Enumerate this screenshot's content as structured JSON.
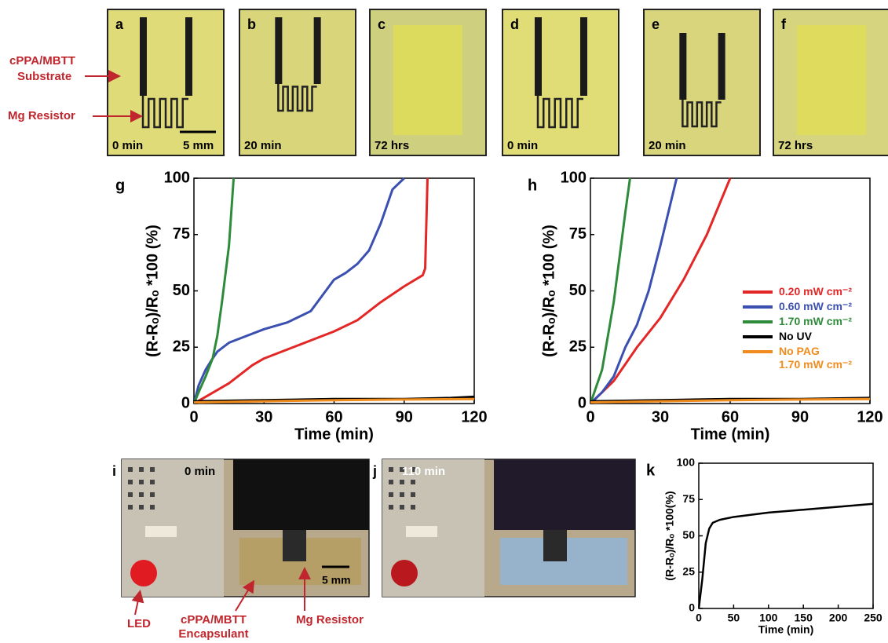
{
  "photos_top": [
    {
      "label": "a",
      "time": "0 min",
      "scale": "5 mm"
    },
    {
      "label": "b",
      "time": "20 min"
    },
    {
      "label": "c",
      "time": "72 hrs"
    },
    {
      "label": "d",
      "time": "0 min"
    },
    {
      "label": "e",
      "time": "20 min"
    },
    {
      "label": "f",
      "time": "72 hrs"
    }
  ],
  "annotations_top": {
    "substrate": [
      "cPPA/MBTT",
      "Substrate"
    ],
    "resistor": "Mg Resistor"
  },
  "photos_bottom": [
    {
      "label": "i",
      "time": "0 min",
      "scale": "5 mm"
    },
    {
      "label": "j",
      "time": "110 min"
    }
  ],
  "annotations_bottom": {
    "led": "LED",
    "encapsulant": [
      "cPPA/MBTT",
      "Encapsulant"
    ],
    "resistor": "Mg Resistor"
  },
  "chart_data": [
    {
      "type": "line",
      "panel": "g",
      "x_label": "Time (min)",
      "y_label": "(R-Rₒ)/Rₒ *100 (%)",
      "xlim": [
        0,
        120
      ],
      "xticks": [
        0,
        30,
        60,
        90,
        120
      ],
      "ylim": [
        0,
        100
      ],
      "yticks": [
        0,
        25,
        50,
        75,
        100
      ],
      "series": [
        {
          "name": "0.20 mW cm⁻²",
          "color": "#e32626",
          "x": [
            0,
            5,
            10,
            15,
            20,
            25,
            30,
            40,
            50,
            60,
            70,
            80,
            90,
            98,
            99,
            100
          ],
          "values": [
            0,
            3,
            6,
            9,
            13,
            17,
            20,
            24,
            28,
            32,
            37,
            45,
            52,
            57,
            60,
            100
          ]
        },
        {
          "name": "0.60 mW cm⁻²",
          "color": "#3b4fb0",
          "x": [
            0,
            2,
            5,
            8,
            10,
            15,
            20,
            30,
            40,
            50,
            55,
            60,
            65,
            70,
            75,
            80,
            85,
            90
          ],
          "values": [
            0,
            8,
            15,
            20,
            23,
            27,
            29,
            33,
            36,
            41,
            48,
            55,
            58,
            62,
            68,
            80,
            95,
            100
          ]
        },
        {
          "name": "1.70 mW cm⁻²",
          "color": "#2e8b3a",
          "x": [
            0,
            2,
            5,
            8,
            10,
            12,
            15,
            17
          ],
          "values": [
            0,
            5,
            12,
            20,
            30,
            45,
            70,
            100
          ]
        },
        {
          "name": "No UV",
          "color": "#000000",
          "x": [
            0,
            30,
            60,
            90,
            110,
            120
          ],
          "values": [
            1,
            1.5,
            2,
            2,
            2.5,
            3
          ]
        },
        {
          "name": "No PAG\n1.70 mW cm⁻²",
          "color": "#f08c1e",
          "x": [
            0,
            30,
            60,
            90,
            120
          ],
          "values": [
            0.5,
            1,
            1.5,
            1.8,
            2
          ]
        }
      ]
    },
    {
      "type": "line",
      "panel": "h",
      "x_label": "Time (min)",
      "y_label": "(R-Rₒ)/Rₒ *100 (%)",
      "xlim": [
        0,
        120
      ],
      "xticks": [
        0,
        30,
        60,
        90,
        120
      ],
      "ylim": [
        0,
        100
      ],
      "yticks": [
        0,
        25,
        50,
        75,
        100
      ],
      "legend": "right",
      "series": [
        {
          "name": "0.20 mW cm⁻²",
          "color": "#e32626",
          "x": [
            0,
            5,
            10,
            20,
            30,
            40,
            50,
            60
          ],
          "values": [
            0,
            5,
            10,
            25,
            38,
            55,
            75,
            100
          ]
        },
        {
          "name": "0.60 mW cm⁻²",
          "color": "#3b4fb0",
          "x": [
            0,
            5,
            10,
            15,
            20,
            25,
            30,
            37
          ],
          "values": [
            0,
            5,
            12,
            25,
            35,
            50,
            70,
            100
          ]
        },
        {
          "name": "1.70 mW cm⁻²",
          "color": "#2e8b3a",
          "x": [
            0,
            5,
            10,
            15,
            17
          ],
          "values": [
            0,
            15,
            45,
            85,
            100
          ]
        },
        {
          "name": "No UV",
          "color": "#000000",
          "x": [
            0,
            30,
            60,
            90,
            120
          ],
          "values": [
            1,
            1.5,
            2,
            2,
            2.5
          ]
        },
        {
          "name": "No PAG\n1.70 mW cm⁻²",
          "color": "#f08c1e",
          "x": [
            0,
            30,
            60,
            90,
            120
          ],
          "values": [
            0.5,
            1,
            1.5,
            1.8,
            2
          ]
        }
      ]
    },
    {
      "type": "line",
      "panel": "k",
      "x_label": "Time (min)",
      "y_label": "(R-Rₒ)/Rₒ *100(%)",
      "xlim": [
        0,
        250
      ],
      "xticks": [
        0,
        50,
        100,
        150,
        200,
        250
      ],
      "ylim": [
        0,
        100
      ],
      "yticks": [
        0,
        25,
        50,
        75,
        100
      ],
      "series": [
        {
          "color": "#000000",
          "x": [
            0,
            5,
            10,
            15,
            20,
            30,
            50,
            100,
            150,
            200,
            250
          ],
          "values": [
            0,
            20,
            45,
            55,
            59,
            61,
            63,
            66,
            68,
            70,
            72
          ]
        }
      ]
    }
  ]
}
